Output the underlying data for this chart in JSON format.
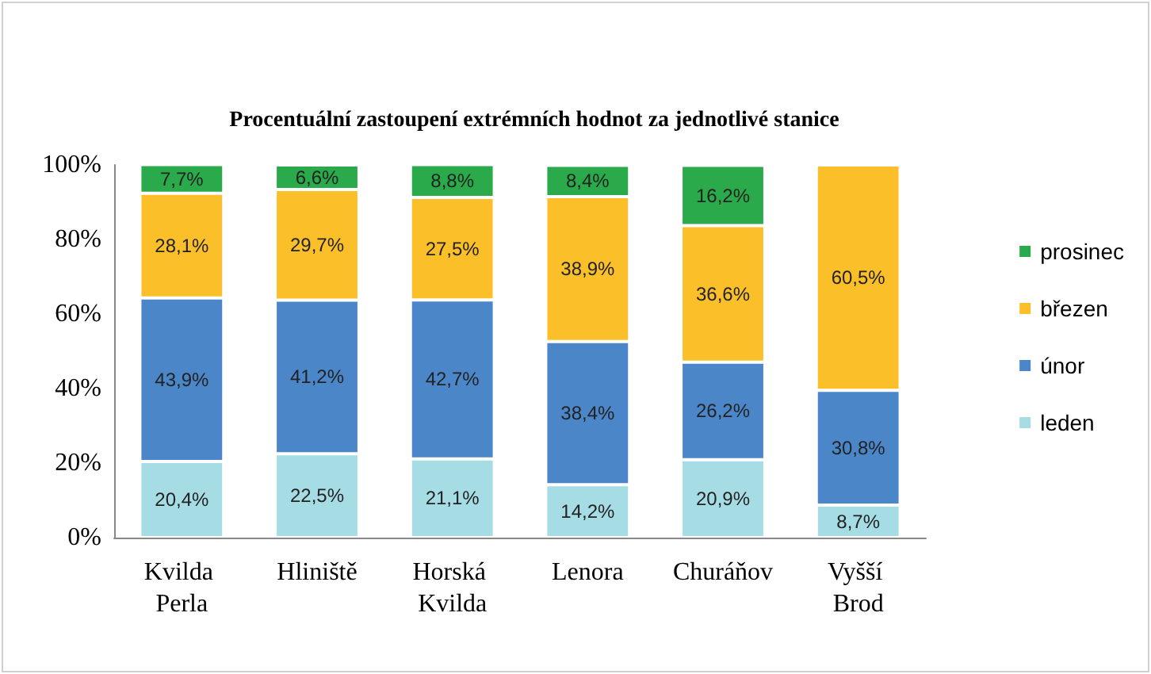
{
  "chart_data": {
    "type": "bar",
    "stacked": true,
    "title": "Procentuální zastoupení extrémních hodnot za jednotlivé stanice",
    "categories": [
      "Kvilda Perla",
      "Hliniště",
      "Horská Kvilda",
      "Lenora",
      "Churáňov",
      "Vyšší Brod"
    ],
    "series": [
      {
        "name": "leden",
        "color": "#a6dce4",
        "values": [
          20.4,
          22.5,
          21.1,
          14.2,
          20.9,
          8.7
        ],
        "value_labels": [
          "20,4%",
          "22,5%",
          "21,1%",
          "14,2%",
          "20,9%",
          "8,7%"
        ]
      },
      {
        "name": "únor",
        "color": "#4a86c8",
        "values": [
          43.9,
          41.2,
          42.7,
          38.4,
          26.2,
          30.8
        ],
        "value_labels": [
          "43,9%",
          "41,2%",
          "42,7%",
          "38,4%",
          "26,2%",
          "30,8%"
        ]
      },
      {
        "name": "březen",
        "color": "#fbbf2a",
        "values": [
          28.1,
          29.7,
          27.5,
          38.9,
          36.6,
          60.5
        ],
        "value_labels": [
          "28,1%",
          "29,7%",
          "27,5%",
          "38,9%",
          "36,6%",
          "60,5%"
        ]
      },
      {
        "name": "prosinec",
        "color": "#2aaa4a",
        "values": [
          7.7,
          6.6,
          8.8,
          8.4,
          16.2,
          null
        ],
        "value_labels": [
          "7,7%",
          "6,6%",
          "8,8%",
          "8,4%",
          "16,2%",
          null
        ]
      }
    ],
    "ylim": [
      0,
      100
    ],
    "yticks": [
      {
        "value": 0,
        "label": "0%"
      },
      {
        "value": 20,
        "label": "20%"
      },
      {
        "value": 40,
        "label": "40%"
      },
      {
        "value": 60,
        "label": "60%"
      },
      {
        "value": 80,
        "label": "80%"
      },
      {
        "value": 100,
        "label": "100%"
      }
    ],
    "grid": false,
    "legend": "right"
  }
}
